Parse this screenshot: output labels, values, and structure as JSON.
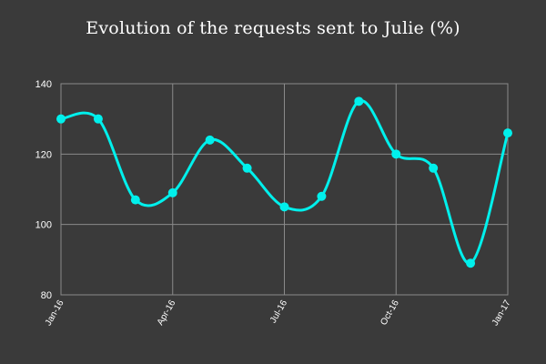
{
  "title": "Evolution of the requests sent to Julie (%)",
  "chart_data": {
    "type": "line",
    "title": "Evolution of the requests sent to Julie (%)",
    "xlabel": "",
    "ylabel": "",
    "x": [
      "2016-01",
      "2016-02",
      "2016-03",
      "2016-04",
      "2016-05",
      "2016-06",
      "2016-07",
      "2016-08",
      "2016-09",
      "2016-10",
      "2016-11",
      "2016-12",
      "2017-01"
    ],
    "x_tick_labels": [
      "Jan-16",
      "Apr-16",
      "Jul-16",
      "Oct-16",
      "Jan-17"
    ],
    "x_tick_index": [
      0,
      3,
      6,
      9,
      12
    ],
    "values": [
      130,
      130,
      107,
      109,
      124,
      116,
      105,
      108,
      135,
      120,
      116,
      89,
      126
    ],
    "ylim": [
      80,
      140
    ],
    "y_ticks": [
      80,
      100,
      120,
      140
    ],
    "grid": true,
    "legend": "none",
    "line_color": "#00f0ec",
    "background_color": "#3a3a3a",
    "grid_color": "#8a8a8a"
  }
}
